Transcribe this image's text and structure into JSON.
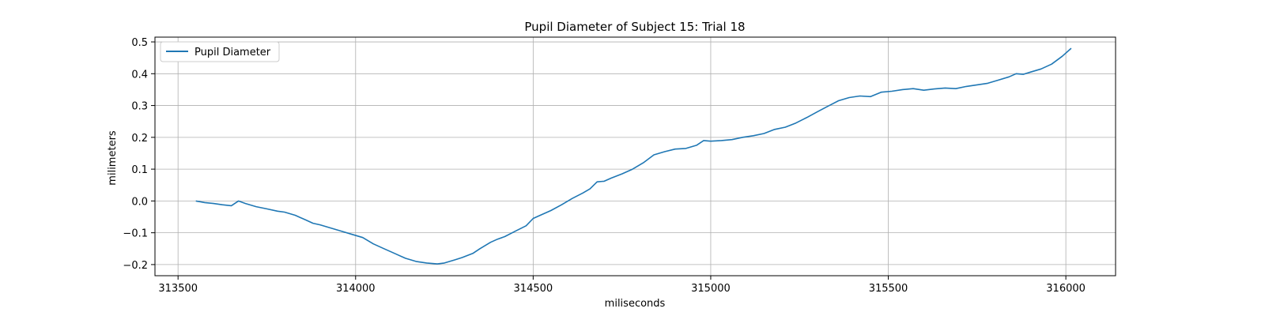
{
  "chart_data": {
    "type": "line",
    "title": "Pupil Diameter of Subject 15: Trial 18",
    "xlabel": "miliseconds",
    "ylabel": "milimeters",
    "xlim": [
      313435,
      316140
    ],
    "ylim": [
      -0.235,
      0.515
    ],
    "x_ticks": [
      313500,
      314000,
      314500,
      315000,
      315500,
      316000
    ],
    "y_ticks": [
      -0.2,
      -0.1,
      0.0,
      0.1,
      0.2,
      0.3,
      0.4,
      0.5
    ],
    "x_tick_labels": [
      "313500",
      "314000",
      "314500",
      "315000",
      "315500",
      "316000"
    ],
    "y_tick_labels": [
      "−0.2",
      "−0.1",
      "0.0",
      "0.1",
      "0.2",
      "0.3",
      "0.4",
      "0.5"
    ],
    "grid": true,
    "legend_position": "top-left",
    "series": [
      {
        "name": "Pupil Diameter",
        "color": "#1f77b4",
        "x": [
          313550,
          313575,
          313600,
          313625,
          313650,
          313670,
          313690,
          313720,
          313750,
          313780,
          313800,
          313830,
          313860,
          313880,
          313900,
          313930,
          313960,
          313990,
          314020,
          314050,
          314080,
          314110,
          314140,
          314170,
          314200,
          314230,
          314250,
          314280,
          314300,
          314330,
          314350,
          314380,
          314400,
          314420,
          314450,
          314480,
          314500,
          314520,
          314550,
          314580,
          314610,
          314640,
          314660,
          314680,
          314700,
          314720,
          314750,
          314780,
          314810,
          314840,
          314870,
          314900,
          314930,
          314960,
          314980,
          315000,
          315030,
          315060,
          315090,
          315120,
          315150,
          315180,
          315210,
          315240,
          315270,
          315300,
          315330,
          315360,
          315390,
          315420,
          315450,
          315480,
          315510,
          315540,
          315570,
          315600,
          315630,
          315660,
          315690,
          315720,
          315750,
          315780,
          315810,
          315840,
          315860,
          315880,
          315900,
          315930,
          315960,
          315990,
          316015
        ],
        "y": [
          0.0,
          -0.005,
          -0.008,
          -0.012,
          -0.015,
          0.0,
          -0.008,
          -0.018,
          -0.025,
          -0.032,
          -0.035,
          -0.045,
          -0.06,
          -0.07,
          -0.075,
          -0.085,
          -0.095,
          -0.105,
          -0.115,
          -0.135,
          -0.15,
          -0.165,
          -0.18,
          -0.19,
          -0.195,
          -0.198,
          -0.195,
          -0.185,
          -0.178,
          -0.165,
          -0.15,
          -0.13,
          -0.12,
          -0.112,
          -0.095,
          -0.078,
          -0.055,
          -0.045,
          -0.03,
          -0.012,
          0.008,
          0.025,
          0.038,
          0.06,
          0.062,
          0.072,
          0.085,
          0.1,
          0.12,
          0.145,
          0.155,
          0.163,
          0.165,
          0.175,
          0.19,
          0.188,
          0.19,
          0.193,
          0.2,
          0.205,
          0.212,
          0.225,
          0.232,
          0.245,
          0.262,
          0.28,
          0.298,
          0.315,
          0.325,
          0.33,
          0.328,
          0.342,
          0.345,
          0.35,
          0.353,
          0.348,
          0.352,
          0.355,
          0.353,
          0.36,
          0.365,
          0.37,
          0.38,
          0.39,
          0.4,
          0.398,
          0.405,
          0.415,
          0.43,
          0.455,
          0.48
        ]
      }
    ]
  }
}
